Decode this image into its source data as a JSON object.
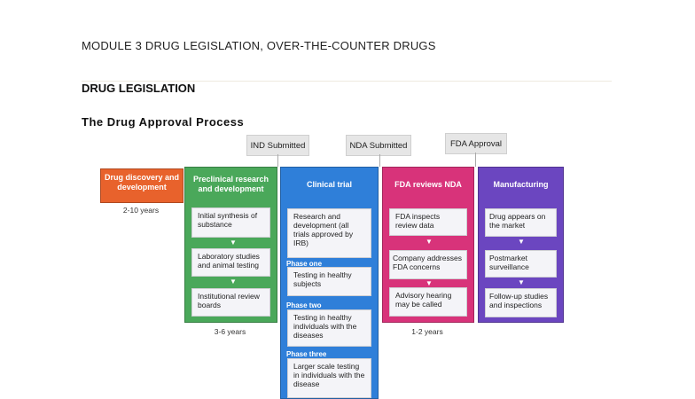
{
  "header": "MODULE 3 DRUG LEGISLATION, OVER-THE-COUNTER DRUGS",
  "section": "DRUG LEGISLATION",
  "subtitle": "The Drug Approval Process",
  "milestones": [
    "IND Submitted",
    "NDA Submitted",
    "FDA Approval"
  ],
  "stages": [
    {
      "title": "Drug discovery and development",
      "color": "#e8622c",
      "duration": "2-10 years"
    },
    {
      "title": "Preclinical research and development",
      "color": "#4aa85a",
      "duration": "3-6 years",
      "items": [
        "Initial synthesis of substance",
        "Laboratory studies and animal testing",
        "Institutional review boards"
      ]
    },
    {
      "title": "Clinical trial",
      "color": "#2f7fd9",
      "items": [
        "Research and development (all trials approved by IRB)",
        "Testing in healthy subjects",
        "Testing in healthy individuals with the diseases",
        "Larger scale testing in individuals with the disease"
      ],
      "phases": [
        "Phase one",
        "Phase two",
        "Phase three"
      ]
    },
    {
      "title": "FDA reviews NDA",
      "color": "#d8337a",
      "duration": "1-2 years",
      "items": [
        "FDA inspects review data",
        "Company addresses FDA concerns",
        "Advisory hearing may be called"
      ]
    },
    {
      "title": "Manufacturing",
      "color": "#6b46c0",
      "items": [
        "Drug appears on the market",
        "Postmarket surveillance",
        "Follow-up studies and inspections"
      ]
    }
  ]
}
